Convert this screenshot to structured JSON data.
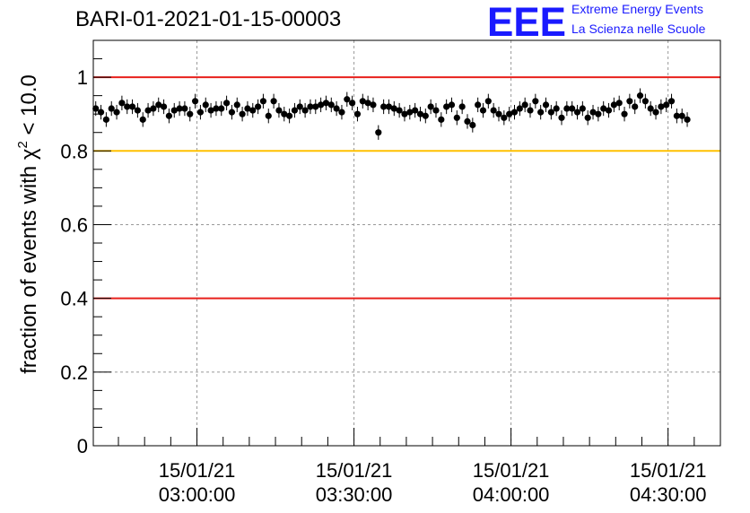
{
  "header": {
    "run_title": "BARI-01-2021-01-15-00003",
    "logo_letters": "EEE",
    "logo_line1": "Extreme Energy Events",
    "logo_line2": "La Scienza nelle Scuole",
    "logo_color": "#1a1aff"
  },
  "chart_data": {
    "type": "scatter",
    "title": "BARI-01-2021-01-15-00003",
    "ylabel_prefix": "fraction of events with χ",
    "ylabel_sup": "2",
    "ylabel_suffix": " < 10.0",
    "xlabel": "",
    "ylim": [
      0,
      1.1
    ],
    "xlim": [
      "15/01/21 02:40:12",
      "15/01/21 04:40:00"
    ],
    "yticks": [
      {
        "value": 0,
        "label": "0"
      },
      {
        "value": 0.2,
        "label": "0.2"
      },
      {
        "value": 0.4,
        "label": "0.4"
      },
      {
        "value": 0.6,
        "label": "0.6"
      },
      {
        "value": 0.8,
        "label": "0.8"
      },
      {
        "value": 1.0,
        "label": "1"
      }
    ],
    "xticks": [
      {
        "time": "03:00:00",
        "date": "15/01/21"
      },
      {
        "time": "03:30:00",
        "date": "15/01/21"
      },
      {
        "time": "04:00:00",
        "date": "15/01/21"
      },
      {
        "time": "04:30:00",
        "date": "15/01/21"
      }
    ],
    "reference_lines": [
      {
        "value": 1.0,
        "color": "#e8201c"
      },
      {
        "value": 0.8,
        "color": "#ffc000"
      },
      {
        "value": 0.4,
        "color": "#e8201c"
      }
    ],
    "grid": true,
    "marker_color": "#000000",
    "error": 0.015,
    "series": [
      {
        "x_start": "15/01/21 02:40:40",
        "x_step_seconds": 60,
        "values": [
          0.915,
          0.905,
          0.885,
          0.915,
          0.905,
          0.93,
          0.92,
          0.92,
          0.91,
          0.885,
          0.91,
          0.915,
          0.925,
          0.92,
          0.895,
          0.91,
          0.915,
          0.915,
          0.9,
          0.935,
          0.905,
          0.925,
          0.91,
          0.915,
          0.915,
          0.93,
          0.905,
          0.925,
          0.9,
          0.915,
          0.91,
          0.92,
          0.935,
          0.895,
          0.935,
          0.91,
          0.9,
          0.895,
          0.91,
          0.92,
          0.91,
          0.92,
          0.92,
          0.925,
          0.93,
          0.925,
          0.915,
          0.905,
          0.94,
          0.93,
          0.9,
          0.935,
          0.93,
          0.925,
          0.85,
          0.92,
          0.92,
          0.915,
          0.91,
          0.9,
          0.905,
          0.91,
          0.9,
          0.895,
          0.92,
          0.91,
          0.885,
          0.92,
          0.925,
          0.89,
          0.92,
          0.88,
          0.87,
          0.925,
          0.91,
          0.935,
          0.91,
          0.9,
          0.89,
          0.9,
          0.905,
          0.915,
          0.925,
          0.91,
          0.935,
          0.905,
          0.925,
          0.905,
          0.915,
          0.89,
          0.915,
          0.915,
          0.905,
          0.915,
          0.89,
          0.905,
          0.9,
          0.915,
          0.91,
          0.925,
          0.93,
          0.9,
          0.935,
          0.92,
          0.95,
          0.935,
          0.915,
          0.905,
          0.92,
          0.925,
          0.935,
          0.895,
          0.895,
          0.885
        ]
      }
    ]
  }
}
